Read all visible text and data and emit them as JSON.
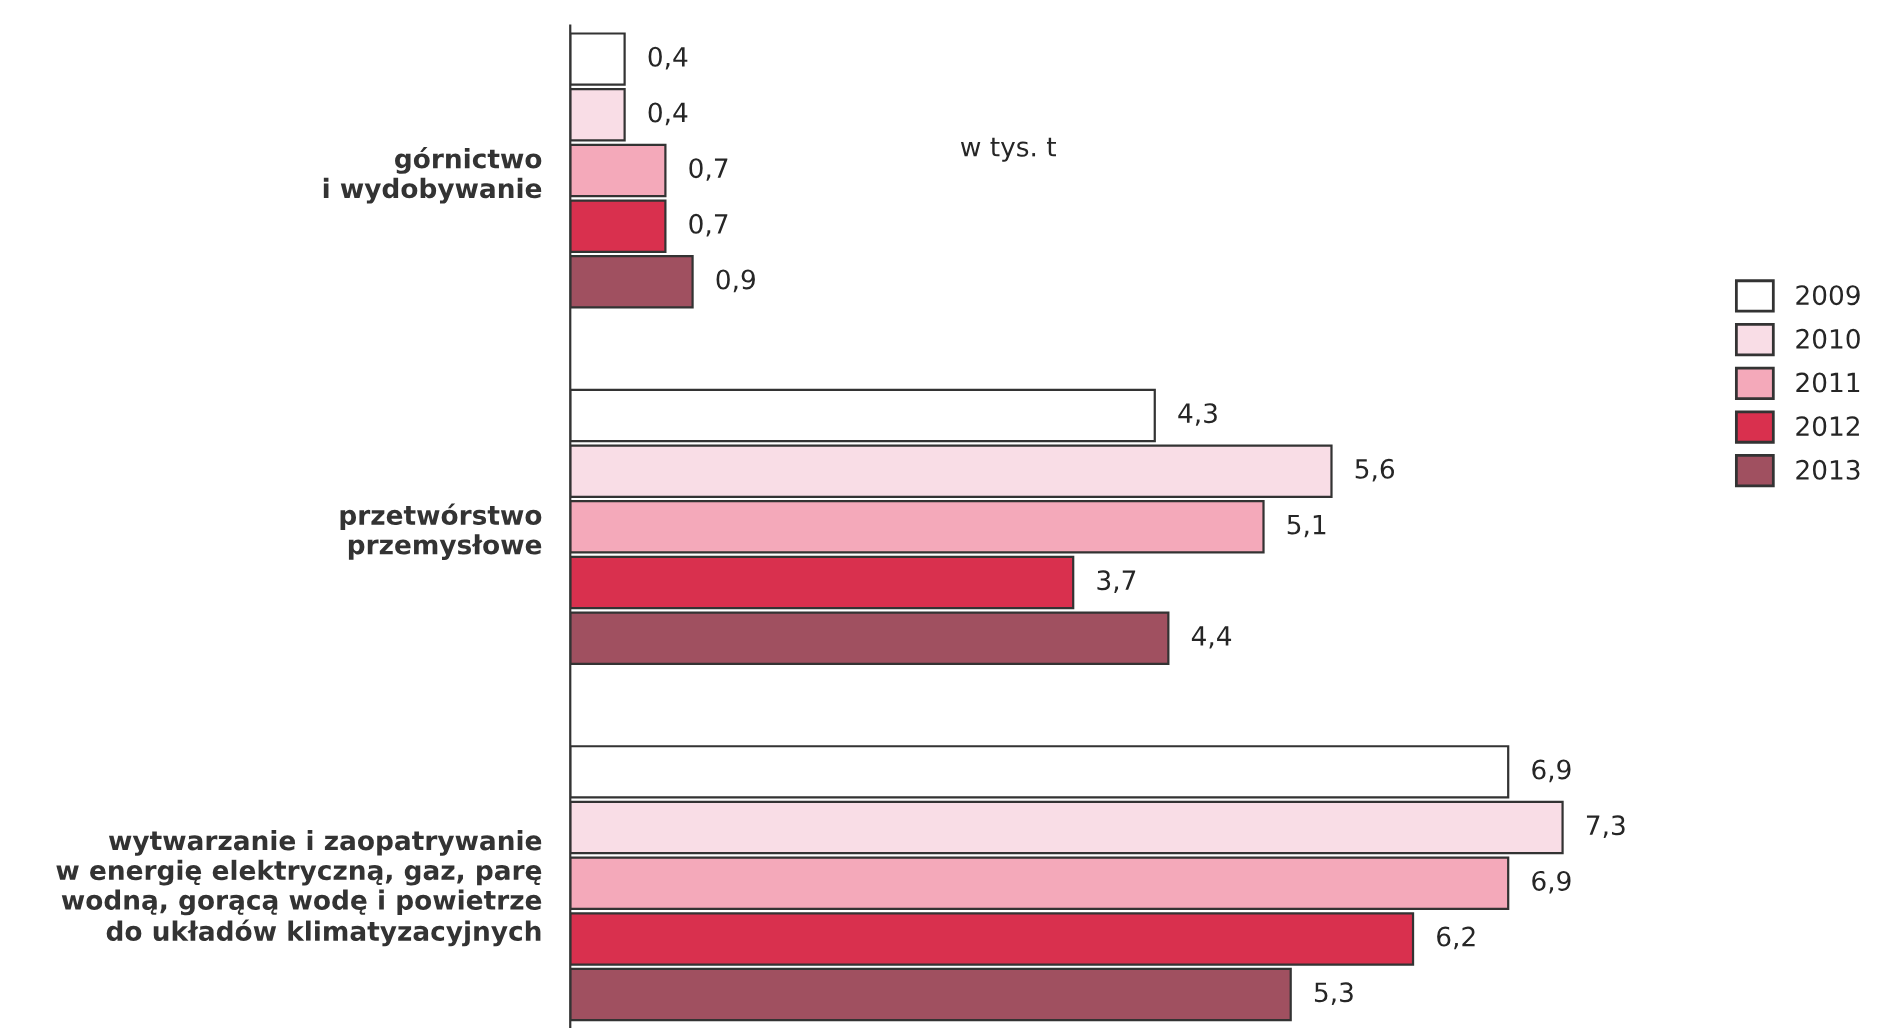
{
  "chart_data": {
    "type": "bar",
    "orientation": "horizontal",
    "categories": [
      "górnictwo\ni wydobywanie",
      "przetwórstwo\nprzemysłowe",
      "wytwarzanie i zaopatrywanie\nw energię elektryczną, gaz, parę\nwodną, gorącą wodę i powietrze\ndo układów klimatyzacyjnych"
    ],
    "series": [
      {
        "name": "2009",
        "color": "#ffffff",
        "values": [
          0.4,
          4.3,
          6.9
        ],
        "value_labels": [
          "0,4",
          "4,3",
          "6,9"
        ]
      },
      {
        "name": "2010",
        "color": "#f9dde6",
        "values": [
          0.4,
          5.6,
          7.3
        ],
        "value_labels": [
          "0,4",
          "5,6",
          "7,3"
        ]
      },
      {
        "name": "2011",
        "color": "#f4a9ba",
        "values": [
          0.7,
          5.1,
          6.9
        ],
        "value_labels": [
          "0,7",
          "5,1",
          "6,9"
        ]
      },
      {
        "name": "2012",
        "color": "#d9304e",
        "values": [
          0.7,
          3.7,
          6.2
        ],
        "value_labels": [
          "0,7",
          "3,7",
          "6,2"
        ]
      },
      {
        "name": "2013",
        "color": "#a05060",
        "values": [
          0.9,
          4.4,
          5.3
        ],
        "value_labels": [
          "0,9",
          "4,4",
          "5,3"
        ]
      }
    ],
    "annotations": [
      "w tys. t"
    ],
    "legend": "right"
  }
}
